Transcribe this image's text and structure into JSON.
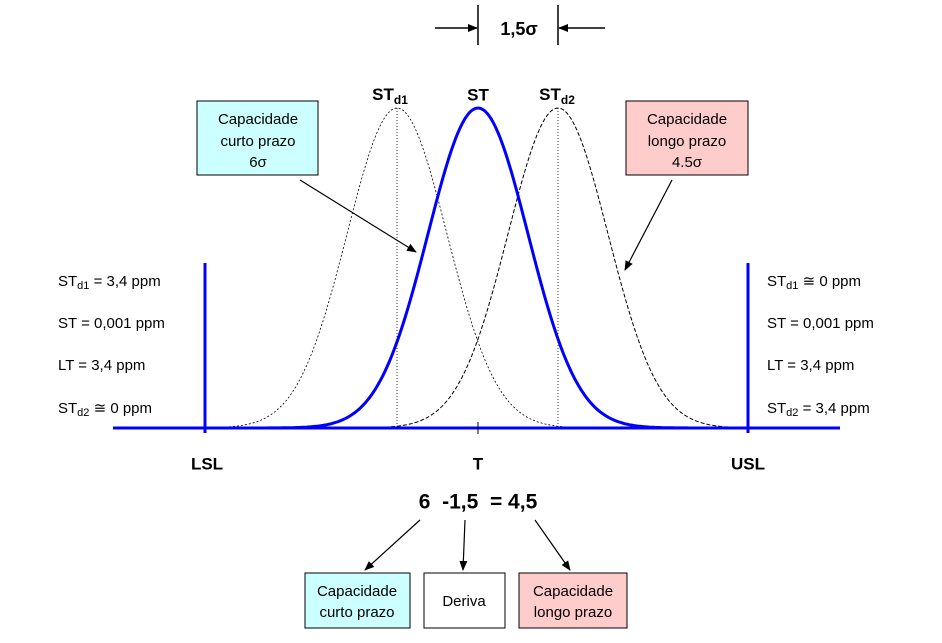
{
  "shift_label": "1,5σ",
  "curve_labels": [
    {
      "base": "ST",
      "sub": "d1"
    },
    {
      "base": "ST"
    },
    {
      "base": "ST",
      "sub": "d2"
    }
  ],
  "short_term_box": [
    "Capacidade",
    "curto prazo",
    "6σ"
  ],
  "long_term_box": [
    "Capacidade",
    "longo prazo",
    "4.5σ"
  ],
  "left_notes": [
    {
      "base": "ST",
      "sub": "d1",
      "rest": " = 3,4 ppm"
    },
    {
      "base": "ST = 0,001 ppm"
    },
    {
      "base": "LT = 3,4 ppm"
    },
    {
      "base": "ST",
      "sub": "d2",
      "rest": " ≅ 0 ppm"
    }
  ],
  "right_notes": [
    {
      "base": "ST",
      "sub": "d1",
      "rest": " ≅ 0 ppm"
    },
    {
      "base": "ST = 0,001 ppm"
    },
    {
      "base": "LT = 3,4 ppm"
    },
    {
      "base": "ST",
      "sub": "d2",
      "rest": " = 3,4 ppm"
    }
  ],
  "axis_labels": [
    "LSL",
    "T",
    "USL"
  ],
  "equation": "6  -1,5  = 4,5",
  "bottom_boxes": [
    [
      "Capacidade",
      "curto prazo"
    ],
    [
      "Deriva"
    ],
    [
      "Capacidade",
      "longo prazo"
    ]
  ]
}
